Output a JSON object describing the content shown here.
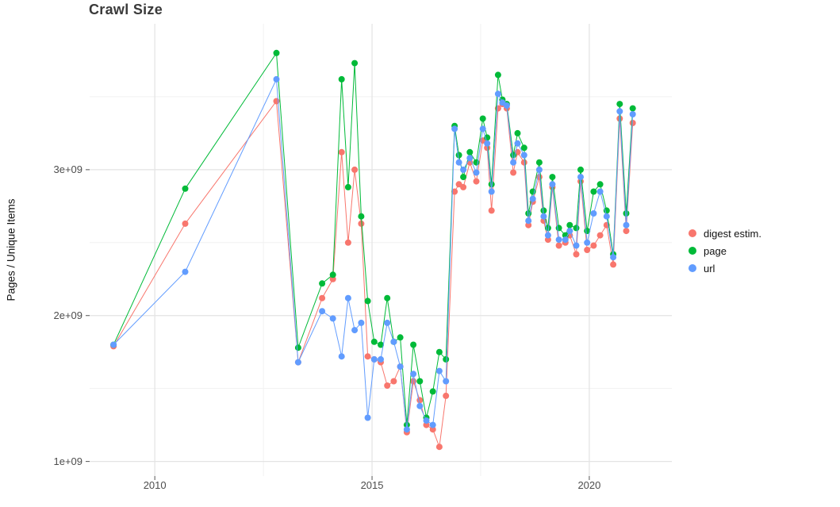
{
  "title": "Crawl Size",
  "axes": {
    "y_label": "Pages / Unique Items",
    "x_ticks": [
      "2010",
      "2015",
      "2020"
    ],
    "y_ticks": [
      "1e+09",
      "2e+09",
      "3e+09"
    ]
  },
  "legend": {
    "items": [
      {
        "label": "digest estim.",
        "color": "#F8766D"
      },
      {
        "label": "page",
        "color": "#00BA38"
      },
      {
        "label": "url",
        "color": "#619CFF"
      }
    ]
  },
  "chart_data": {
    "type": "line",
    "marker": "circle",
    "title": "Crawl Size",
    "xlabel": "",
    "ylabel": "Pages / Unique Items",
    "x_unit": "decimal year (crawl date)",
    "y_unit": "pages / unique items (count)",
    "grid": true,
    "legend_position": "right",
    "xlim": [
      2008.5,
      2021.9
    ],
    "ylim": [
      900000000.0,
      4000000000.0
    ],
    "x_tick_values": [
      2010,
      2015,
      2020
    ],
    "y_tick_values": [
      1000000000.0,
      2000000000.0,
      3000000000.0
    ],
    "x_minor": [
      2012.5,
      2017.5
    ],
    "y_minor": [
      1500000000.0,
      2500000000.0,
      3500000000.0
    ],
    "x": [
      2009.05,
      2010.7,
      2012.8,
      2013.3,
      2013.85,
      2014.1,
      2014.3,
      2014.45,
      2014.6,
      2014.75,
      2014.9,
      2015.05,
      2015.2,
      2015.35,
      2015.5,
      2015.65,
      2015.8,
      2015.95,
      2016.1,
      2016.25,
      2016.4,
      2016.55,
      2016.7,
      2016.9,
      2017.0,
      2017.1,
      2017.25,
      2017.4,
      2017.55,
      2017.65,
      2017.75,
      2017.9,
      2018.0,
      2018.1,
      2018.25,
      2018.35,
      2018.5,
      2018.6,
      2018.7,
      2018.85,
      2018.95,
      2019.05,
      2019.15,
      2019.3,
      2019.45,
      2019.55,
      2019.7,
      2019.8,
      2019.95,
      2020.1,
      2020.25,
      2020.4,
      2020.55,
      2020.7,
      2020.85,
      2021.0
    ],
    "series": [
      {
        "name": "digest estim.",
        "key": "digest-estim",
        "color": "#F8766D",
        "values": [
          1790000000.0,
          2630000000.0,
          3470000000.0,
          1680000000.0,
          2120000000.0,
          2250000000.0,
          3120000000.0,
          2500000000.0,
          3000000000.0,
          2630000000.0,
          1720000000.0,
          1700000000.0,
          1680000000.0,
          1520000000.0,
          1550000000.0,
          1650000000.0,
          1200000000.0,
          1550000000.0,
          1420000000.0,
          1250000000.0,
          1220000000.0,
          1100000000.0,
          1450000000.0,
          2850000000.0,
          2900000000.0,
          2880000000.0,
          3050000000.0,
          2920000000.0,
          3200000000.0,
          3150000000.0,
          2720000000.0,
          3420000000.0,
          3450000000.0,
          3420000000.0,
          2980000000.0,
          3120000000.0,
          3050000000.0,
          2620000000.0,
          2780000000.0,
          2950000000.0,
          2650000000.0,
          2520000000.0,
          2880000000.0,
          2480000000.0,
          2500000000.0,
          2550000000.0,
          2420000000.0,
          2920000000.0,
          2450000000.0,
          2480000000.0,
          2550000000.0,
          2620000000.0,
          2350000000.0,
          3350000000.0,
          2580000000.0,
          3320000000.0
        ]
      },
      {
        "name": "page",
        "key": "page",
        "color": "#00BA38",
        "values": [
          1800000000.0,
          2870000000.0,
          3800000000.0,
          1780000000.0,
          2220000000.0,
          2280000000.0,
          3620000000.0,
          2880000000.0,
          3730000000.0,
          2680000000.0,
          2100000000.0,
          1820000000.0,
          1800000000.0,
          2120000000.0,
          1820000000.0,
          1850000000.0,
          1250000000.0,
          1800000000.0,
          1550000000.0,
          1300000000.0,
          1480000000.0,
          1750000000.0,
          1700000000.0,
          3300000000.0,
          3100000000.0,
          2950000000.0,
          3120000000.0,
          3050000000.0,
          3350000000.0,
          3220000000.0,
          2900000000.0,
          3650000000.0,
          3480000000.0,
          3450000000.0,
          3100000000.0,
          3250000000.0,
          3150000000.0,
          2700000000.0,
          2850000000.0,
          3050000000.0,
          2720000000.0,
          2600000000.0,
          2950000000.0,
          2600000000.0,
          2550000000.0,
          2620000000.0,
          2600000000.0,
          3000000000.0,
          2580000000.0,
          2850000000.0,
          2900000000.0,
          2720000000.0,
          2420000000.0,
          3450000000.0,
          2700000000.0,
          3420000000.0
        ]
      },
      {
        "name": "url",
        "key": "url",
        "color": "#619CFF",
        "values": [
          1800000000.0,
          2300000000.0,
          3620000000.0,
          1680000000.0,
          2030000000.0,
          1980000000.0,
          1720000000.0,
          2120000000.0,
          1900000000.0,
          1950000000.0,
          1300000000.0,
          1700000000.0,
          1700000000.0,
          1950000000.0,
          1820000000.0,
          1650000000.0,
          1220000000.0,
          1600000000.0,
          1380000000.0,
          1280000000.0,
          1250000000.0,
          1620000000.0,
          1550000000.0,
          3280000000.0,
          3050000000.0,
          3000000000.0,
          3080000000.0,
          2980000000.0,
          3280000000.0,
          3180000000.0,
          2850000000.0,
          3520000000.0,
          3460000000.0,
          3440000000.0,
          3050000000.0,
          3180000000.0,
          3100000000.0,
          2650000000.0,
          2800000000.0,
          3000000000.0,
          2680000000.0,
          2550000000.0,
          2900000000.0,
          2520000000.0,
          2520000000.0,
          2580000000.0,
          2480000000.0,
          2950000000.0,
          2500000000.0,
          2700000000.0,
          2850000000.0,
          2680000000.0,
          2400000000.0,
          3400000000.0,
          2620000000.0,
          3380000000.0
        ]
      }
    ]
  }
}
